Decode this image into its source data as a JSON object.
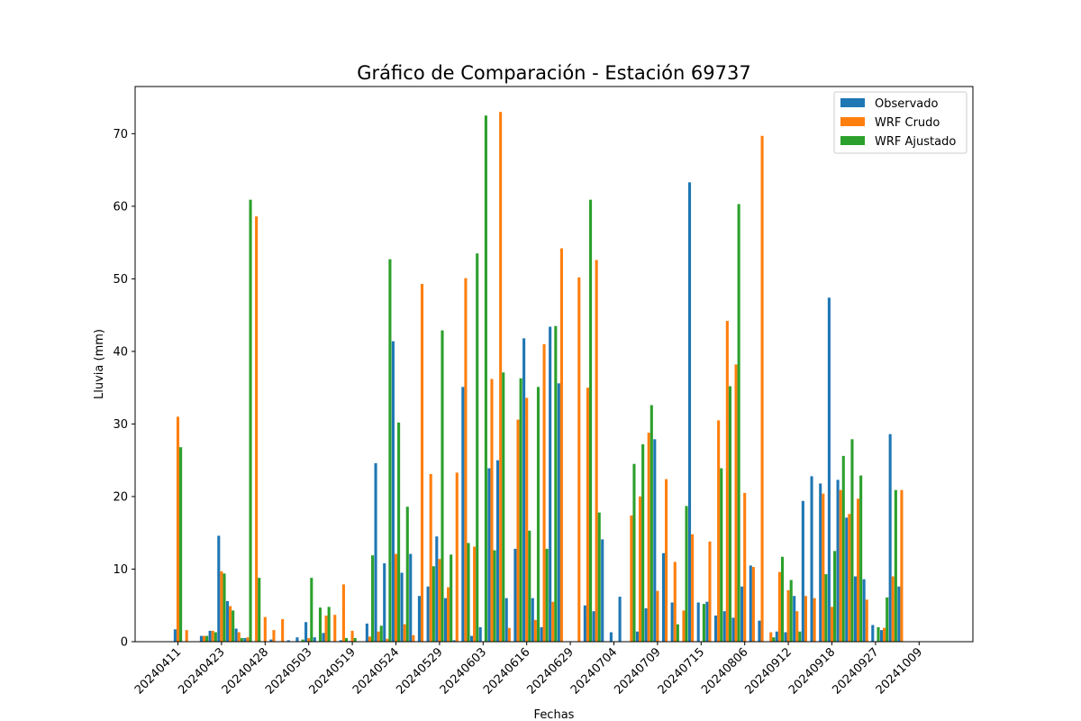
{
  "chart_data": {
    "type": "bar",
    "title": "Gráfico de Comparación - Estación 69737",
    "xlabel": "Fechas",
    "ylabel": "Lluvia (mm)",
    "ylim": [
      0,
      76.5
    ],
    "yticks": [
      0,
      10,
      20,
      30,
      40,
      50,
      60,
      70
    ],
    "xtick_labels": [
      "20240411",
      "20240423",
      "20240428",
      "20240503",
      "20240519",
      "20240524",
      "20240529",
      "20240603",
      "20240616",
      "20240629",
      "20240704",
      "20240709",
      "20240715",
      "20240806",
      "20240912",
      "20240918",
      "20240927",
      "20241009"
    ],
    "legend_position": "top-right",
    "grid": false,
    "series": [
      {
        "name": "Observado",
        "color": "#1f77b4",
        "values": [
          1.7,
          0,
          0,
          0.8,
          1.5,
          14.6,
          5.6,
          1.8,
          0.5,
          0,
          0,
          0.3,
          0,
          0.2,
          0.6,
          2.7,
          0.6,
          1.2,
          0,
          0.2,
          0.1,
          0,
          2.5,
          24.6,
          10.8,
          41.4,
          9.5,
          12.1,
          6.3,
          7.6,
          14.5,
          6,
          0.2,
          35.1,
          0.8,
          2,
          23.9,
          25,
          6,
          12.8,
          41.8,
          6,
          2,
          43.4,
          35.6,
          0,
          0,
          5,
          4.2,
          14.1,
          1.3,
          6.2,
          0,
          1.4,
          4.6,
          27.9,
          12.2,
          5.4,
          0,
          63.3,
          5.4,
          5.5,
          3.6,
          4.2,
          3.3,
          7.6,
          10.5,
          2.9,
          0,
          1.4,
          1.3,
          6.3,
          19.4,
          22.8,
          21.8,
          47.4,
          22.3,
          17.1,
          9,
          8.6,
          2.3,
          1.6,
          28.6,
          7.6
        ]
      },
      {
        "name": "WRF Crudo",
        "color": "#ff7f0e",
        "values": [
          31,
          1.6,
          0,
          0.8,
          1.5,
          9.7,
          4.9,
          1.3,
          0.6,
          58.6,
          3.4,
          1.6,
          3.1,
          0,
          0,
          0.5,
          0,
          3.6,
          3.7,
          7.9,
          1.5,
          0,
          0.7,
          1.4,
          0.4,
          12.1,
          2.4,
          0.9,
          49.3,
          23.1,
          11.4,
          7.5,
          23.3,
          50.1,
          13.1,
          0,
          36.2,
          73,
          1.9,
          30.6,
          33.6,
          3,
          41,
          5.5,
          54.2,
          0,
          50.2,
          35,
          52.6,
          0,
          0,
          0,
          17.4,
          20,
          28.8,
          7,
          22.4,
          11,
          4.3,
          14.8,
          0,
          13.8,
          30.5,
          44.2,
          38.2,
          20.5,
          10.3,
          69.7,
          1.3,
          9.6,
          7.1,
          4.2,
          6.3,
          6,
          20.4,
          4.8,
          20.9,
          17.6,
          19.7,
          5.8,
          0,
          1.9,
          9,
          20.9
        ]
      },
      {
        "name": "WRF Ajustado",
        "color": "#2ca02c",
        "values": [
          26.8,
          0,
          0,
          0.8,
          1.3,
          9.4,
          4.3,
          0.5,
          60.9,
          8.8,
          0,
          0,
          0,
          0,
          0.3,
          8.8,
          4.7,
          4.8,
          0,
          0.5,
          0.5,
          0,
          11.9,
          2.2,
          52.7,
          30.2,
          18.6,
          0,
          0,
          10.4,
          42.9,
          12,
          0,
          13.6,
          53.5,
          72.5,
          12.6,
          37.1,
          0,
          36.3,
          15.3,
          35.1,
          12.8,
          43.5,
          0,
          0,
          0,
          60.9,
          17.8,
          0,
          0,
          0,
          24.5,
          27.2,
          32.6,
          0,
          0,
          2.4,
          18.7,
          0,
          5.2,
          0,
          23.9,
          35.2,
          60.3,
          0,
          0,
          0,
          0.6,
          11.7,
          8.5,
          1.4,
          0,
          0,
          9.3,
          12.5,
          25.6,
          27.9,
          22.9,
          0,
          2,
          6.1,
          20.9,
          0
        ]
      }
    ]
  }
}
